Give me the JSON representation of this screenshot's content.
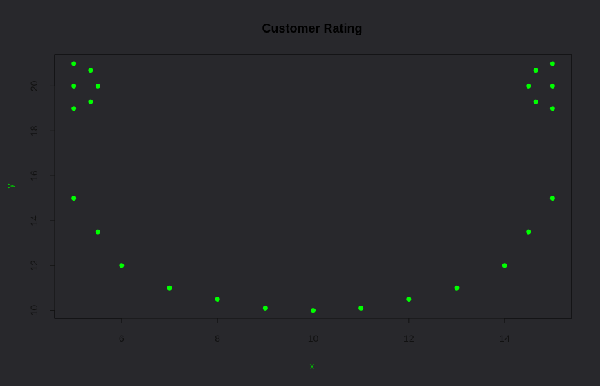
{
  "chart_data": {
    "type": "scatter",
    "title": "Customer Rating",
    "xlabel": "x",
    "ylabel": "y",
    "xlim": [
      4.6,
      15.4
    ],
    "ylim": [
      9.65,
      21.4
    ],
    "xticks": [
      6,
      8,
      10,
      12,
      14
    ],
    "yticks": [
      10,
      12,
      14,
      16,
      18,
      20
    ],
    "grid": false,
    "legend": "none",
    "points": [
      {
        "x": 5.0,
        "y": 21.0
      },
      {
        "x": 5.0,
        "y": 20.0
      },
      {
        "x": 5.0,
        "y": 19.0
      },
      {
        "x": 5.0,
        "y": 15.0
      },
      {
        "x": 5.35,
        "y": 20.7
      },
      {
        "x": 5.35,
        "y": 19.3
      },
      {
        "x": 5.5,
        "y": 20.0
      },
      {
        "x": 5.5,
        "y": 13.5
      },
      {
        "x": 6.0,
        "y": 12.0
      },
      {
        "x": 7.0,
        "y": 11.0
      },
      {
        "x": 8.0,
        "y": 10.5
      },
      {
        "x": 9.0,
        "y": 10.1
      },
      {
        "x": 10.0,
        "y": 10.0
      },
      {
        "x": 11.0,
        "y": 10.1
      },
      {
        "x": 12.0,
        "y": 10.5
      },
      {
        "x": 13.0,
        "y": 11.0
      },
      {
        "x": 14.0,
        "y": 12.0
      },
      {
        "x": 14.5,
        "y": 13.5
      },
      {
        "x": 14.5,
        "y": 20.0
      },
      {
        "x": 14.65,
        "y": 20.7
      },
      {
        "x": 14.65,
        "y": 19.3
      },
      {
        "x": 15.0,
        "y": 21.0
      },
      {
        "x": 15.0,
        "y": 20.0
      },
      {
        "x": 15.0,
        "y": 19.0
      },
      {
        "x": 15.0,
        "y": 15.0
      }
    ]
  },
  "colors": {
    "background": "#28282c",
    "points": "#00ff00",
    "axis_labels": "#00cc00",
    "title": "#000000",
    "frame": "#000000",
    "ticks": "#111111"
  }
}
